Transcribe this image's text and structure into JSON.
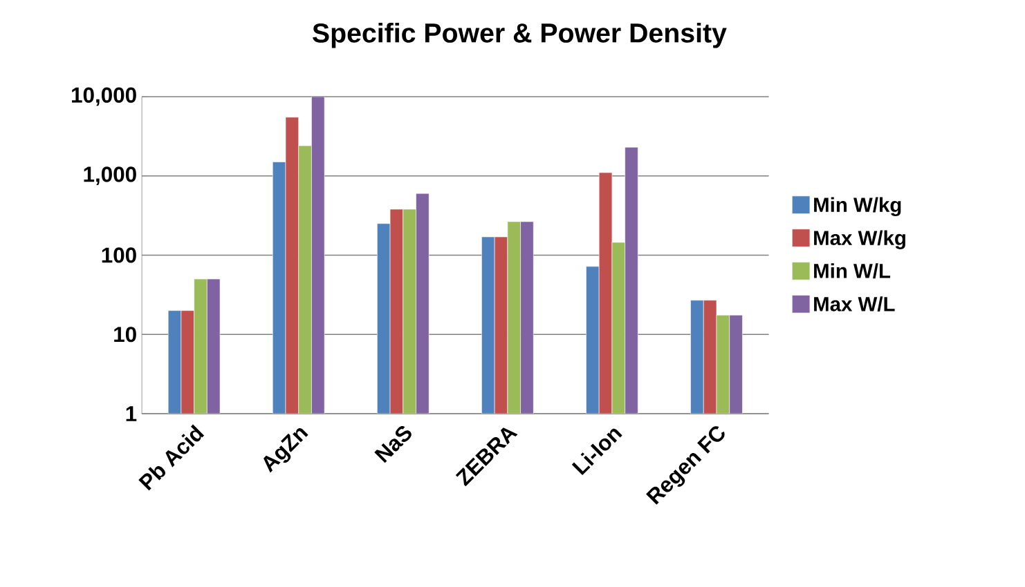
{
  "chart_data": {
    "type": "bar",
    "title": "Specific Power & Power Density",
    "categories": [
      "Pb Acid",
      "AgZn",
      "NaS",
      "ZEBRA",
      "Li-Ion",
      "Regen FC"
    ],
    "series": [
      {
        "name": "Min W/kg",
        "color": "#4f81bd",
        "values": [
          20,
          1500,
          250,
          170,
          72,
          27
        ]
      },
      {
        "name": "Max W/kg",
        "color": "#c0504d",
        "values": [
          20,
          5500,
          380,
          170,
          1100,
          27
        ]
      },
      {
        "name": "Min W/L",
        "color": "#9bbb59",
        "values": [
          50,
          2400,
          380,
          265,
          145,
          17.5
        ]
      },
      {
        "name": "Max W/L",
        "color": "#8064a2",
        "values": [
          50,
          10000,
          600,
          265,
          2300,
          17.5
        ]
      }
    ],
    "log": "y",
    "ylim": [
      1,
      10000
    ],
    "yticks": [
      1,
      10,
      {
        "value": 100,
        "label": "100"
      },
      {
        "value": 1000,
        "label": "1,000"
      },
      {
        "value": 10000,
        "label": "10,000"
      }
    ],
    "grid": "y",
    "legend": "right"
  }
}
